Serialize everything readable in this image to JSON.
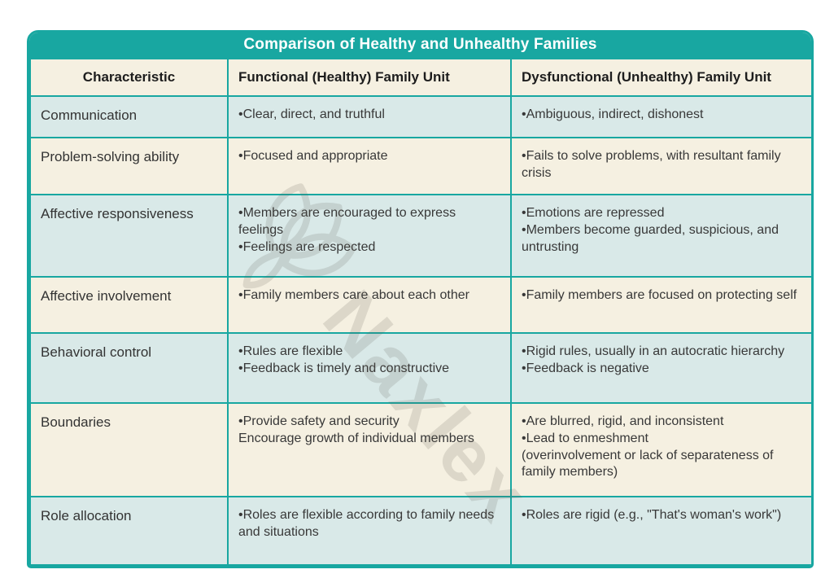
{
  "title": "Comparison of Healthy and Unhealthy Families",
  "watermark": {
    "text": "Naxlex",
    "logo": "naxlex-flower-logo"
  },
  "colors": {
    "teal": "#18a7a1",
    "cream_row": "#f5f0e1",
    "blue_row": "#d9e9e8",
    "title_text": "#ffffff",
    "body_text": "#383838",
    "page_background": "#ffffff"
  },
  "table": {
    "columns": {
      "characteristic": "Characteristic",
      "functional": "Functional (Healthy) Family Unit",
      "dysfunctional": "Dysfunctional (Unhealthy) Family Unit"
    },
    "rows": [
      {
        "characteristic": "Communication",
        "functional": [
          "•Clear, direct, and truthful"
        ],
        "dysfunctional": [
          "•Ambiguous, indirect, dishonest"
        ]
      },
      {
        "characteristic": "Problem-solving ability",
        "functional": [
          "•Focused and appropriate"
        ],
        "dysfunctional": [
          "•Fails to solve problems, with resultant family crisis"
        ]
      },
      {
        "characteristic": "Affective responsiveness",
        "functional": [
          "•Members are encouraged to express feelings",
          "•Feelings are respected"
        ],
        "dysfunctional": [
          "•Emotions are repressed",
          "•Members become guarded, suspicious, and untrusting"
        ]
      },
      {
        "characteristic": "Affective involvement",
        "functional": [
          "•Family members care about each other"
        ],
        "dysfunctional": [
          "•Family members are focused on protecting self"
        ]
      },
      {
        "characteristic": "Behavioral control",
        "functional": [
          "•Rules are flexible",
          "•Feedback is timely and constructive"
        ],
        "dysfunctional": [
          "•Rigid rules, usually in an autocratic hierarchy",
          "•Feedback is negative"
        ]
      },
      {
        "characteristic": "Boundaries",
        "functional": [
          "•Provide safety and security",
          "Encourage growth of individual members"
        ],
        "dysfunctional": [
          "•Are blurred, rigid, and inconsistent",
          "•Lead to enmeshment",
          "(overinvolvement or lack of separateness of family members)"
        ]
      },
      {
        "characteristic": "Role allocation",
        "functional": [
          "•Roles are flexible according to family needs and situations"
        ],
        "dysfunctional": [
          "•Roles are rigid (e.g., \"That's woman's work\")"
        ]
      }
    ]
  }
}
